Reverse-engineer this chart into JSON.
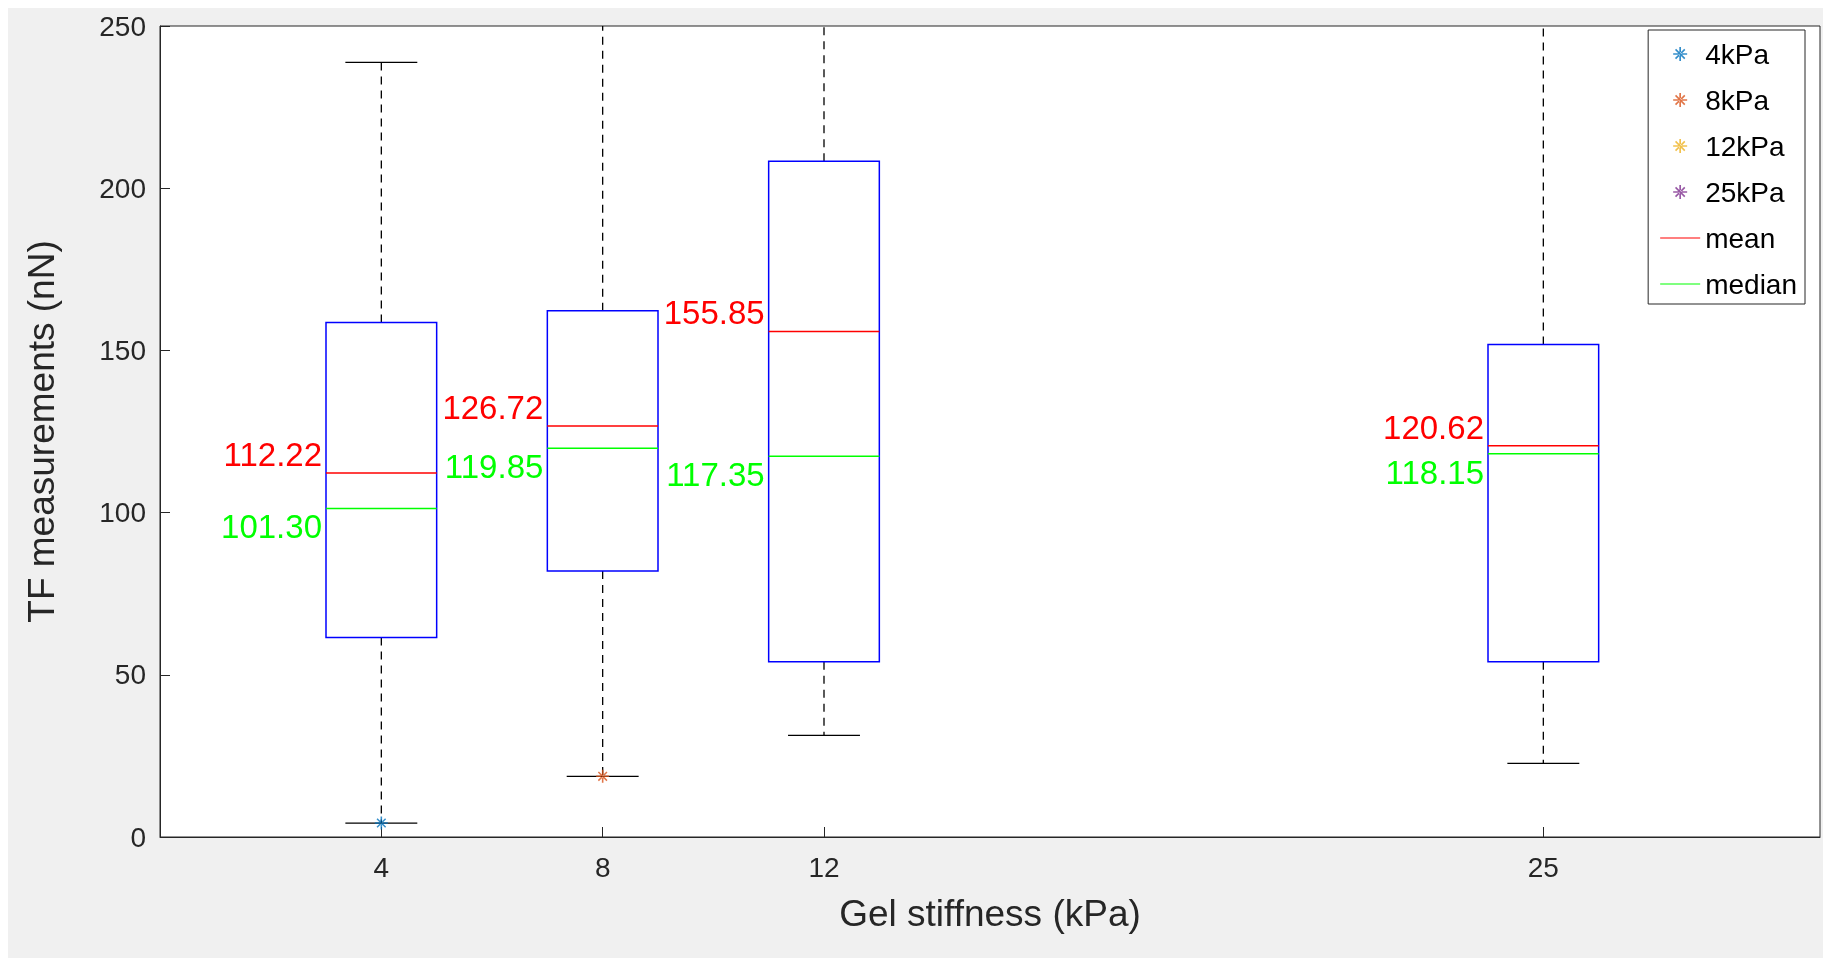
{
  "chart_data": {
    "type": "box",
    "xlabel": "Gel stiffness (kPa)",
    "ylabel": "TF measurements (nN)",
    "xlim": [
      0,
      30
    ],
    "xticks": [
      4,
      8,
      12,
      25
    ],
    "ylim": [
      0,
      250
    ],
    "yticks": [
      0,
      50,
      100,
      150,
      200,
      250
    ],
    "grid": false,
    "legend": "top right",
    "series": [
      {
        "color": "#0000ff",
        "line_style": "dashed",
        "x": [
          4,
          8,
          12,
          25
        ],
        "boxes": [
          {
            "low": 4.3,
            "q1": 61.5,
            "median": 101.3,
            "q3": 158.6,
            "high": 238.8,
            "mean": 112.22
          },
          {
            "low": 18.7,
            "q1": 82,
            "median": 119.85,
            "q3": 162.2,
            "high": 250,
            "mean": 126.72
          },
          {
            "low": 31.3,
            "q1": 54,
            "median": 117.35,
            "q3": 208.3,
            "high": 250,
            "mean": 155.85
          },
          {
            "low": 22.7,
            "q1": 54,
            "median": 118.15,
            "q3": 151.8,
            "high": 250,
            "mean": 120.62
          }
        ]
      },
      {
        "type": "scatter",
        "name": "4kPa",
        "color": "#0072bd",
        "marker": "star",
        "x": [
          4
        ],
        "values": [
          4.3
        ]
      },
      {
        "type": "scatter",
        "name": "8kPa",
        "color": "#d95319",
        "marker": "star",
        "x": [
          8
        ],
        "values": [
          18.7
        ]
      },
      {
        "type": "scatter",
        "name": "12kPa",
        "color": "#edb120",
        "marker": "star"
      },
      {
        "type": "scatter",
        "name": "25kPa",
        "color": "#7e2f8e",
        "marker": "star"
      },
      {
        "type": "line",
        "name": "mean",
        "color": "#ff0000"
      },
      {
        "type": "line",
        "name": "median",
        "color": "#00ff00"
      }
    ],
    "annotations": [
      {
        "text": "112.22",
        "x": 4,
        "y": 112.22
      },
      {
        "text": "101.30",
        "x": 4,
        "y": 101.3
      },
      {
        "text": "126.72",
        "x": 8,
        "y": 126.72
      },
      {
        "text": "119.85",
        "x": 8,
        "y": 119.85
      },
      {
        "text": "155.85",
        "x": 12,
        "y": 155.85
      },
      {
        "text": "117.35",
        "x": 12,
        "y": 117.35
      },
      {
        "text": "120.62",
        "x": 25,
        "y": 120.62
      },
      {
        "text": "118.15",
        "x": 25,
        "y": 118.15
      }
    ]
  }
}
